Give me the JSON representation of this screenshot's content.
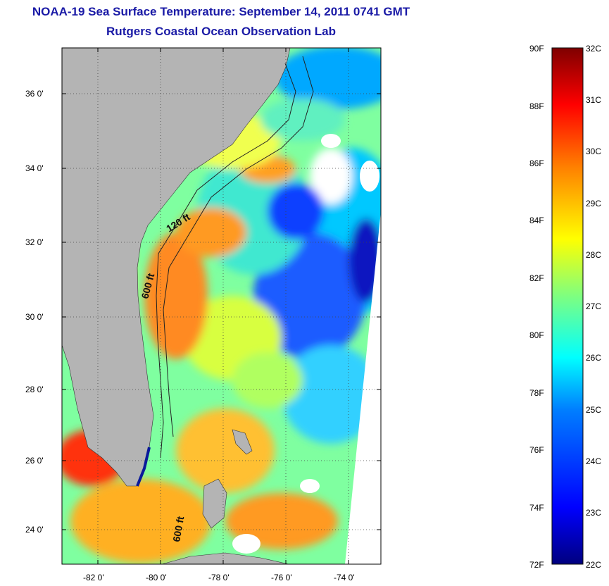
{
  "title": {
    "line1": "NOAA-19 Sea Surface Temperature:  September 14, 2011 0741 GMT",
    "line2": "Rutgers Coastal Ocean Observation Lab"
  },
  "map": {
    "lat_labels": [
      "24 0'",
      "26 0'",
      "28 0'",
      "30 0'",
      "32 0'",
      "34 0'",
      "36 0'"
    ],
    "lon_labels": [
      "-82 0'",
      "-80 0'",
      "-78 0'",
      "-76 0'",
      "-74 0'"
    ],
    "contour_labels": [
      "120 ft",
      "600 ft",
      "600 ft"
    ],
    "colors": {
      "land": "#b4b4b4",
      "no_data": "#ffffff",
      "title": "#1a1aa6"
    }
  },
  "colorbar": {
    "fahrenheit": [
      "90F",
      "88F",
      "86F",
      "84F",
      "82F",
      "80F",
      "78F",
      "76F",
      "74F",
      "72F"
    ],
    "celsius": [
      "32C",
      "31C",
      "30C",
      "29C",
      "28C",
      "27C",
      "26C",
      "25C",
      "24C",
      "23C",
      "22C"
    ],
    "stops": [
      "#00007f",
      "#0000ff",
      "#007fff",
      "#00ffff",
      "#7fff7f",
      "#ffff00",
      "#ff7f00",
      "#ff0000",
      "#7f0000"
    ]
  }
}
